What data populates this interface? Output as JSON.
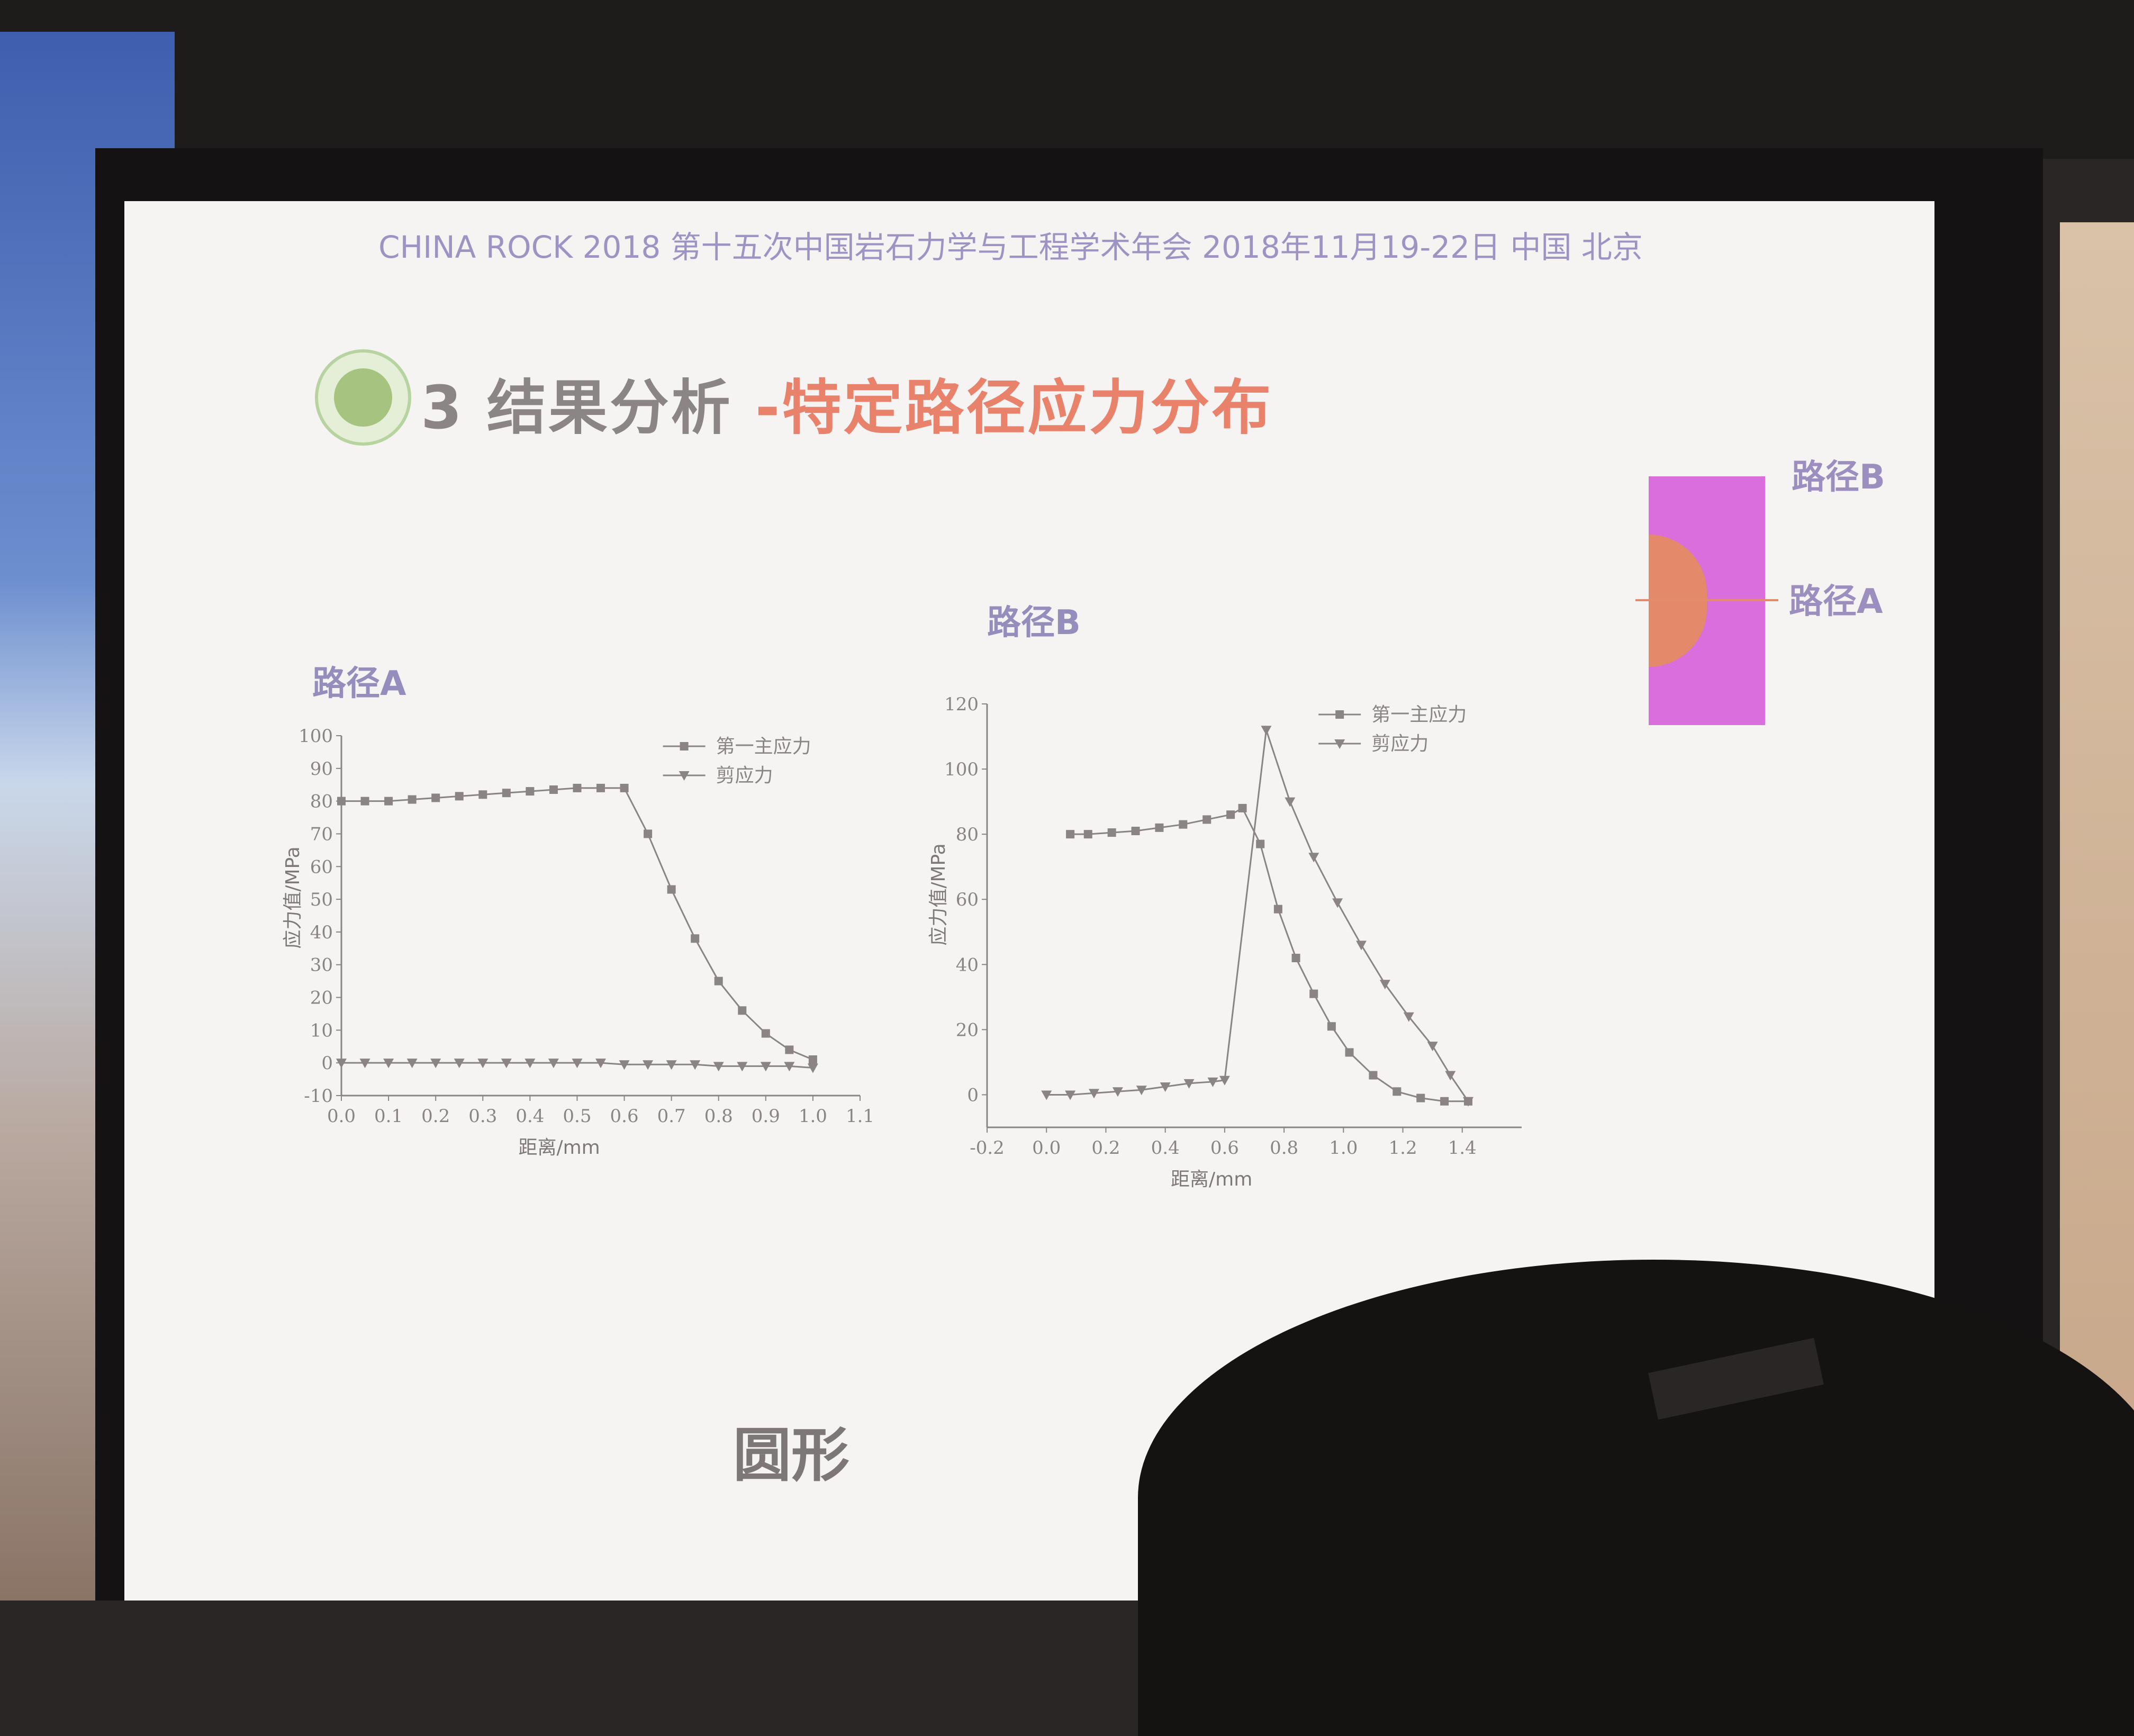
{
  "slide": {
    "header": "CHINA ROCK 2018 第十五次中国岩石力学与工程学术年会    2018年11月19-22日   中国  北京",
    "title_part1": "3 结果分析 ",
    "title_part2": "-特定路径应力分布",
    "path_b_label": "路径B",
    "path_a_label": "路径A",
    "chart_a_label": "路径A",
    "chart_b_label": "路径B",
    "bottom_title": "圆形"
  },
  "colors": {
    "header": "#9f93c4",
    "title_gray": "#8b8585",
    "title_accent": "#e8826a",
    "shape_fill": "#d96edc",
    "circle_fill": "#e5896b",
    "series_line": "#8a8484"
  },
  "chart_data": [
    {
      "type": "line",
      "title": "路径A",
      "xlabel": "距离/mm",
      "ylabel": "应力值/MPa",
      "xlim": [
        0.0,
        1.1
      ],
      "ylim": [
        -10,
        100
      ],
      "xticks": [
        "0.0",
        "0.1",
        "0.2",
        "0.3",
        "0.4",
        "0.5",
        "0.6",
        "0.7",
        "0.8",
        "0.9",
        "1.0",
        "1.1"
      ],
      "yticks": [
        "-10",
        "0",
        "10",
        "20",
        "30",
        "40",
        "50",
        "60",
        "70",
        "80",
        "90",
        "100"
      ],
      "legend": "top-right",
      "series": [
        {
          "name": "第一主应力",
          "marker": "square",
          "x": [
            0.0,
            0.05,
            0.1,
            0.15,
            0.2,
            0.25,
            0.3,
            0.35,
            0.4,
            0.45,
            0.5,
            0.55,
            0.6,
            0.65,
            0.7,
            0.75,
            0.8,
            0.85,
            0.9,
            0.95,
            1.0
          ],
          "y": [
            80,
            80,
            80,
            80.5,
            81,
            81.5,
            82,
            82.5,
            83,
            83.5,
            84,
            84,
            84,
            70,
            53,
            38,
            25,
            16,
            9,
            4,
            1
          ]
        },
        {
          "name": "剪应力",
          "marker": "triangle-down",
          "x": [
            0.0,
            0.05,
            0.1,
            0.15,
            0.2,
            0.25,
            0.3,
            0.35,
            0.4,
            0.45,
            0.5,
            0.55,
            0.6,
            0.65,
            0.7,
            0.75,
            0.8,
            0.85,
            0.9,
            0.95,
            1.0
          ],
          "y": [
            0,
            0,
            0,
            0,
            0,
            0,
            0,
            0,
            0,
            0,
            0,
            0,
            -0.5,
            -0.5,
            -0.5,
            -0.5,
            -1,
            -1,
            -1,
            -1,
            -1.5
          ]
        }
      ]
    },
    {
      "type": "line",
      "title": "路径B",
      "xlabel": "距离/mm",
      "ylabel": "应力值/MPa",
      "xlim": [
        -0.2,
        1.6
      ],
      "ylim": [
        -10,
        120
      ],
      "xticks": [
        "-0.2",
        "0.0",
        "0.2",
        "0.4",
        "0.6",
        "0.8",
        "1.0",
        "1.2",
        "1.4"
      ],
      "yticks": [
        "0",
        "20",
        "40",
        "60",
        "80",
        "100",
        "120"
      ],
      "legend": "top-right",
      "series": [
        {
          "name": "第一主应力",
          "marker": "square",
          "x": [
            0.08,
            0.14,
            0.22,
            0.3,
            0.38,
            0.46,
            0.54,
            0.62,
            0.66,
            0.72,
            0.78,
            0.84,
            0.9,
            0.96,
            1.02,
            1.1,
            1.18,
            1.26,
            1.34,
            1.42
          ],
          "y": [
            80,
            80,
            80.5,
            81,
            82,
            83,
            84.5,
            86,
            88,
            77,
            57,
            42,
            31,
            21,
            13,
            6,
            1,
            -1,
            -2,
            -2
          ]
        },
        {
          "name": "剪应力",
          "marker": "triangle-down",
          "x": [
            0.0,
            0.08,
            0.16,
            0.24,
            0.32,
            0.4,
            0.48,
            0.56,
            0.6,
            0.74,
            0.82,
            0.9,
            0.98,
            1.06,
            1.14,
            1.22,
            1.3,
            1.36,
            1.42
          ],
          "y": [
            0,
            0,
            0.5,
            1,
            1.5,
            2.5,
            3.5,
            4,
            4.5,
            112,
            90,
            73,
            59,
            46,
            34,
            24,
            15,
            6,
            -2
          ]
        }
      ]
    }
  ]
}
